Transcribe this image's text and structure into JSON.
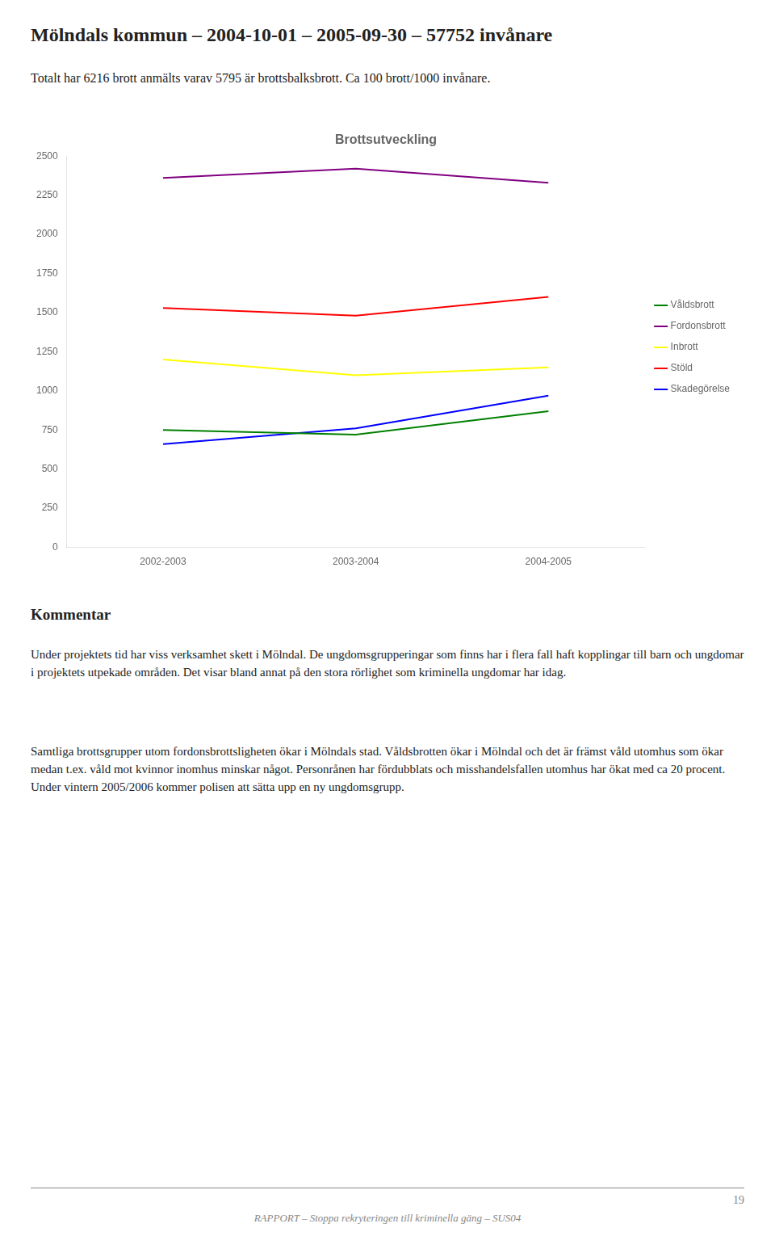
{
  "page_title": "Mölndals kommun – 2004-10-01 – 2005-09-30 – 57752 invånare",
  "subtitle": "Totalt har 6216 brott anmälts varav 5795 är brottsbalksbrott. Ca 100 brott/1000 invånare.",
  "comment_title": "Kommentar",
  "comment_text1": "Under projektets tid har viss verksamhet skett i Mölndal. De ungdomsgrupperingar som finns har i flera fall haft kopplingar till barn och ungdomar i projektets utpekade områden. Det visar bland annat på den stora rörlighet som kriminella ungdomar har idag.",
  "comment_text2": "Samtliga brottsgrupper utom fordonsbrottsligheten ökar i Mölndals stad. Våldsbrotten ökar i Mölndal och det är främst våld utomhus som ökar medan t.ex. våld mot kvinnor inomhus minskar något. Personrånen har fördubblats och misshandelsfallen utomhus har ökat med ca 20 procent. Under vintern 2005/2006 kommer polisen att sätta upp en ny ungdomsgrupp.",
  "footer_line": "RAPPORT – Stoppa rekryteringen till kriminella gäng – SUS04",
  "page_number": "19",
  "chart_data": {
    "type": "line",
    "title": "Brottsutveckling",
    "categories": [
      "2002-2003",
      "2003-2004",
      "2004-2005"
    ],
    "series": [
      {
        "name": "Våldsbrott",
        "color": "#008000",
        "values": [
          750,
          720,
          870
        ]
      },
      {
        "name": "Fordonsbrott",
        "color": "#800080",
        "values": [
          2360,
          2420,
          2330
        ]
      },
      {
        "name": "Inbrott",
        "color": "#FFFF00",
        "values": [
          1200,
          1100,
          1150
        ]
      },
      {
        "name": "Stöld",
        "color": "#FF0000",
        "values": [
          1530,
          1480,
          1600
        ]
      },
      {
        "name": "Skadegörelse",
        "color": "#0000FF",
        "values": [
          660,
          760,
          970
        ]
      }
    ],
    "ylim": [
      0,
      2500
    ],
    "yticks": [
      0,
      250,
      500,
      750,
      1000,
      1250,
      1500,
      1750,
      2000,
      2250,
      2500
    ],
    "grid": false,
    "legend": "right",
    "marker": "none"
  }
}
